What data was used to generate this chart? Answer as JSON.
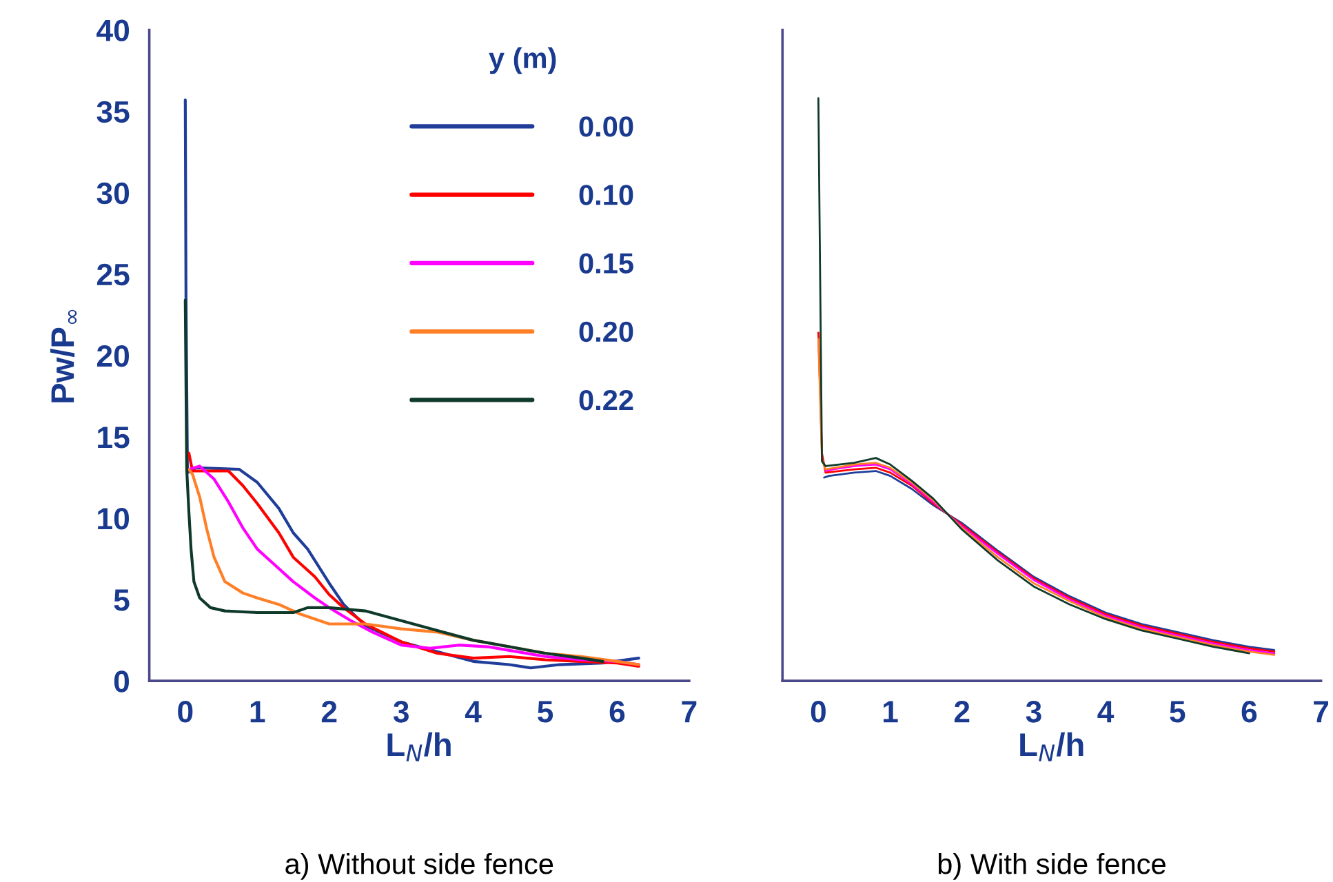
{
  "chart_data": [
    {
      "type": "line",
      "xlabel": "L$_{N}$/h",
      "ylabel": "Pw/P$_{∞}$",
      "legend_title": "y (m)",
      "legend": "top right",
      "xlim": [
        -0.5,
        7
      ],
      "ylim": [
        0,
        40
      ],
      "xticks": [
        0,
        1,
        2,
        3,
        4,
        5,
        6,
        7
      ],
      "yticks": [
        0,
        5,
        10,
        15,
        20,
        25,
        30,
        35,
        40
      ],
      "annotations": [
        "a) Without side fence"
      ],
      "series": [
        {
          "name": "0.00",
          "color": "#1f3d99",
          "x": [
            0,
            0.01,
            0.03,
            0.15,
            0.75,
            1.0,
            1.3,
            1.5,
            1.7,
            2.0,
            2.2,
            2.5,
            3.0,
            3.5,
            4.0,
            4.5,
            4.8,
            5.2,
            5.8,
            6.3
          ],
          "values": [
            35.7,
            23.4,
            12.8,
            13.1,
            13.0,
            12.2,
            10.6,
            9.1,
            8.1,
            6.0,
            4.7,
            3.4,
            2.4,
            1.8,
            1.2,
            1.0,
            0.8,
            1.0,
            1.1,
            1.4
          ]
        },
        {
          "name": "0.10",
          "color": "#ff0000",
          "x": [
            0.05,
            0.1,
            0.6,
            0.8,
            1.0,
            1.3,
            1.5,
            1.8,
            2.0,
            2.2,
            2.5,
            3.0,
            3.5,
            4.0,
            4.5,
            5.0,
            5.5,
            6.0,
            6.3
          ],
          "values": [
            14.0,
            12.9,
            12.9,
            12.0,
            10.9,
            9.1,
            7.6,
            6.4,
            5.3,
            4.5,
            3.5,
            2.4,
            1.7,
            1.4,
            1.5,
            1.3,
            1.2,
            1.1,
            0.9
          ]
        },
        {
          "name": "0.15",
          "color": "#ff00ff",
          "x": [
            0.05,
            0.2,
            0.4,
            0.6,
            0.8,
            1.0,
            1.2,
            1.5,
            1.8,
            2.0,
            2.3,
            2.6,
            3.0,
            3.4,
            3.8,
            4.2,
            4.6,
            5.0,
            5.5,
            6.0,
            6.3
          ],
          "values": [
            13.0,
            13.2,
            12.4,
            11.0,
            9.4,
            8.1,
            7.3,
            6.1,
            5.1,
            4.5,
            3.7,
            3.0,
            2.2,
            2.0,
            2.2,
            2.1,
            1.8,
            1.5,
            1.3,
            1.2,
            1.0
          ]
        },
        {
          "name": "0.20",
          "color": "#ff7f27",
          "x": [
            0.05,
            0.1,
            0.2,
            0.3,
            0.4,
            0.55,
            0.8,
            1.0,
            1.3,
            1.6,
            2.0,
            2.5,
            3.0,
            3.5,
            4.0,
            4.5,
            5.0,
            5.5,
            6.0,
            6.3
          ],
          "values": [
            13.0,
            12.7,
            11.3,
            9.3,
            7.6,
            6.1,
            5.4,
            5.1,
            4.7,
            4.1,
            3.5,
            3.5,
            3.2,
            3.0,
            2.5,
            2.1,
            1.7,
            1.5,
            1.2,
            1.0
          ]
        },
        {
          "name": "0.22",
          "color": "#0f3a2a",
          "x": [
            0,
            0.02,
            0.05,
            0.08,
            0.12,
            0.2,
            0.35,
            0.55,
            1.0,
            1.5,
            1.7,
            2.0,
            2.5,
            3.0,
            3.5,
            4.0,
            4.5,
            5.0,
            5.5,
            5.8
          ],
          "values": [
            23.4,
            13.0,
            10.4,
            8.1,
            6.1,
            5.1,
            4.5,
            4.3,
            4.2,
            4.2,
            4.5,
            4.5,
            4.3,
            3.7,
            3.1,
            2.5,
            2.1,
            1.7,
            1.4,
            1.2
          ]
        }
      ]
    },
    {
      "type": "line",
      "xlabel": "L$_{N}$/h",
      "tick_labels": "x",
      "xlim": [
        -0.5,
        7
      ],
      "ylim": [
        0,
        40
      ],
      "xticks": [
        0,
        1,
        2,
        3,
        4,
        5,
        6,
        7
      ],
      "yticks": [
        0,
        5,
        10,
        15,
        20,
        25,
        30,
        35,
        40
      ],
      "annotations": [
        "b) With side fence"
      ],
      "series": [
        {
          "color": "#1f3d99",
          "x": [
            0.08,
            0.15,
            0.5,
            0.8,
            1.0,
            1.3,
            1.6,
            2.0,
            2.5,
            3.0,
            3.5,
            4.0,
            4.5,
            5.0,
            5.5,
            6.0,
            6.35
          ],
          "values": [
            12.5,
            12.6,
            12.8,
            12.9,
            12.6,
            11.8,
            10.8,
            9.7,
            8.0,
            6.4,
            5.2,
            4.2,
            3.5,
            3.0,
            2.5,
            2.1,
            1.9
          ]
        },
        {
          "color": "#ff0000",
          "x": [
            0,
            0.05,
            0.1,
            0.5,
            0.8,
            1.0,
            1.3,
            1.6,
            2.0,
            2.5,
            3.0,
            3.5,
            4.0,
            4.5,
            5.0,
            5.5,
            6.0,
            6.35
          ],
          "values": [
            21.4,
            14.0,
            12.8,
            13.0,
            13.1,
            12.8,
            12.0,
            10.9,
            9.6,
            7.9,
            6.3,
            5.1,
            4.1,
            3.4,
            2.9,
            2.4,
            2.0,
            1.8
          ]
        },
        {
          "color": "#ff00ff",
          "x": [
            0.1,
            0.2,
            0.5,
            0.8,
            1.0,
            1.3,
            1.6,
            2.0,
            2.5,
            3.0,
            3.5,
            4.0,
            4.5,
            5.0,
            5.5,
            6.0,
            6.35
          ],
          "values": [
            12.9,
            13.0,
            13.2,
            13.3,
            13.0,
            12.1,
            11.0,
            9.5,
            7.8,
            6.2,
            5.0,
            4.0,
            3.3,
            2.8,
            2.3,
            1.9,
            1.7
          ]
        },
        {
          "color": "#ff7f27",
          "x": [
            0,
            0.05,
            0.1,
            0.5,
            0.8,
            1.0,
            1.3,
            1.6,
            2.0,
            2.5,
            3.0,
            3.5,
            4.0,
            4.5,
            5.0,
            5.5,
            6.0,
            6.35
          ],
          "values": [
            21.0,
            13.6,
            13.0,
            13.3,
            13.4,
            13.1,
            12.2,
            11.1,
            9.4,
            7.6,
            6.0,
            4.9,
            3.9,
            3.2,
            2.7,
            2.2,
            1.8,
            1.6
          ]
        },
        {
          "color": "#0f3a2a",
          "x": [
            0,
            0.05,
            0.1,
            0.5,
            0.8,
            1.0,
            1.3,
            1.6,
            2.0,
            2.5,
            3.0,
            3.5,
            4.0,
            4.5,
            5.0,
            5.5,
            6.0
          ],
          "values": [
            35.8,
            13.5,
            13.2,
            13.4,
            13.7,
            13.3,
            12.3,
            11.2,
            9.3,
            7.4,
            5.8,
            4.7,
            3.8,
            3.1,
            2.6,
            2.1,
            1.7
          ]
        }
      ]
    }
  ]
}
